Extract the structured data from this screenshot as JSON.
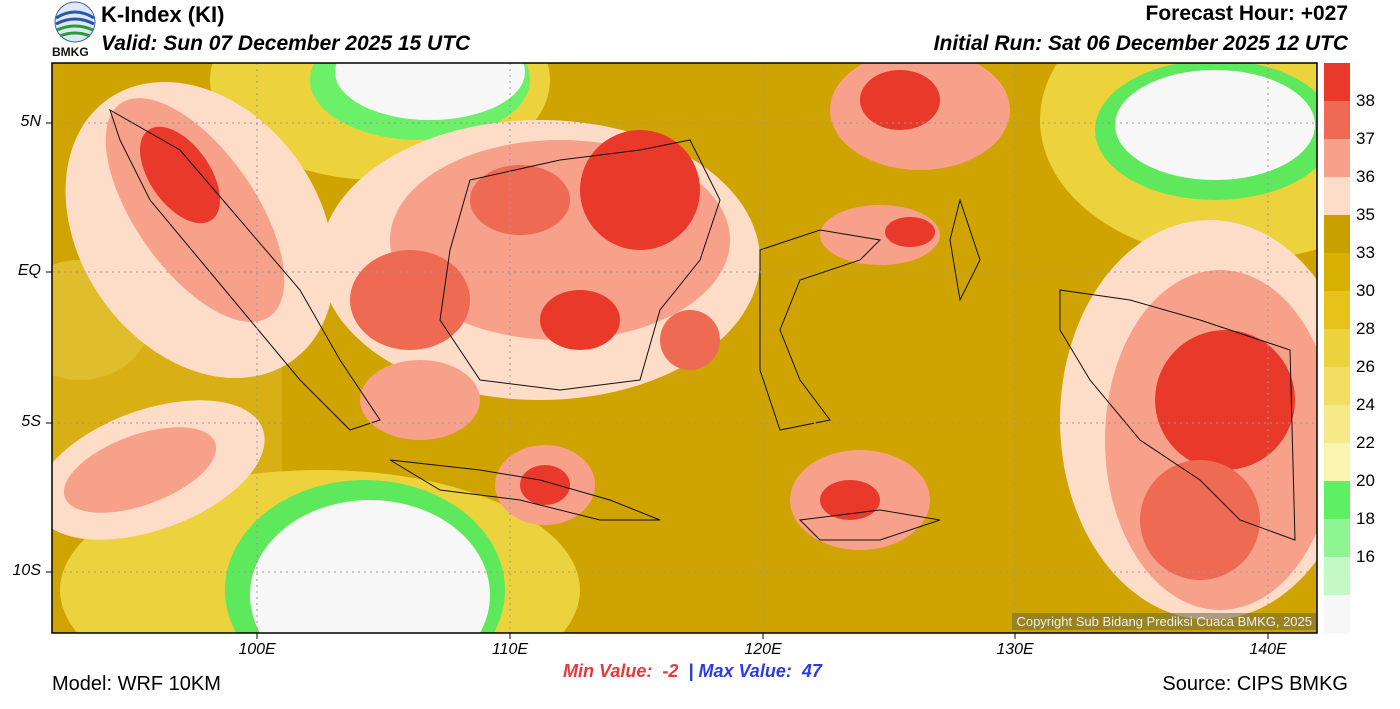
{
  "header": {
    "title": "K-Index (KI)",
    "valid": "Valid: Sun 07 December 2025 15 UTC",
    "forecast_hour": "Forecast Hour: +027",
    "initial_run": "Initial Run: Sat 06 December 2025 12 UTC",
    "logo_text": "BMKG"
  },
  "axes": {
    "y_ticks": [
      "5N",
      "EQ",
      "5S",
      "10S"
    ],
    "x_ticks": [
      "100E",
      "110E",
      "120E",
      "130E",
      "140E"
    ]
  },
  "colorbar": {
    "labels": [
      "38",
      "37",
      "36",
      "35",
      "33",
      "30",
      "28",
      "26",
      "24",
      "22",
      "20",
      "18",
      "16"
    ],
    "colors": [
      "#e8392a",
      "#ef6a52",
      "#f7a08a",
      "#fddcc8",
      "#c8a000",
      "#d8b100",
      "#e6c21a",
      "#ecd23c",
      "#f2de62",
      "#f6e98a",
      "#fbf3b0",
      "#5cf062",
      "#8ef592",
      "#c2f9c4",
      "#f7f7f7"
    ]
  },
  "stats": {
    "min_label": "Min Value:",
    "min_value": "-2",
    "separator": "|",
    "max_label": "Max Value:",
    "max_value": "47"
  },
  "footer": {
    "model": "Model: WRF 10KM",
    "source": "Source: CIPS BMKG",
    "copyright": "Copyright Sub Bidang Prediksi Cuaca BMKG, 2025"
  }
}
